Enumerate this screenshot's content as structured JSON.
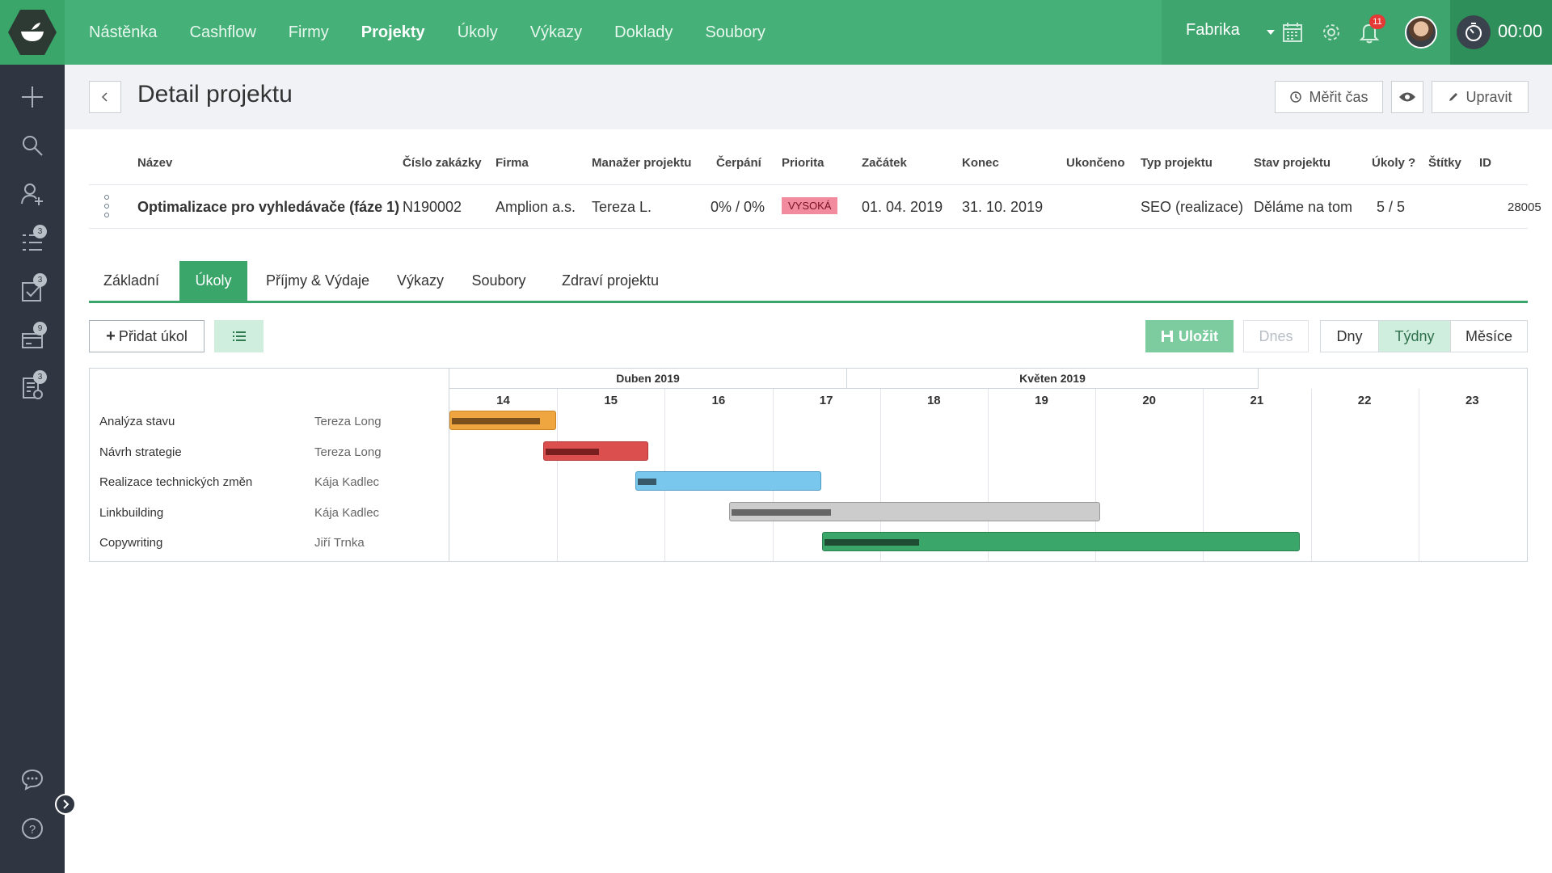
{
  "nav": {
    "items": [
      "Nástěnka",
      "Cashflow",
      "Firmy",
      "Projekty",
      "Úkoly",
      "Výkazy",
      "Doklady",
      "Soubory"
    ],
    "active_index": 3
  },
  "topbar": {
    "company": "Fabrika",
    "notifications_count": "11",
    "timer": "00:00"
  },
  "sidebar": {
    "badges": {
      "tasks": "3",
      "reports": "3",
      "invoices": "9",
      "docs": "3"
    }
  },
  "header": {
    "title": "Detail projektu",
    "measure_time_label": "Měřit čas",
    "edit_label": "Upravit"
  },
  "project_table": {
    "headers": {
      "name": "Název",
      "order_no": "Číslo zakázky",
      "company": "Firma",
      "manager": "Manažer projektu",
      "spent": "Čerpání",
      "priority": "Priorita",
      "start": "Začátek",
      "end": "Konec",
      "finished": "Ukončeno",
      "type": "Typ projektu",
      "state": "Stav projektu",
      "tasks": "Úkoly ?",
      "tags": "Štítky",
      "id": "ID"
    },
    "row": {
      "name": "Optimalizace pro vyhledávače (fáze 1)",
      "order_no": "N190002",
      "company": "Amplion a.s.",
      "manager": "Tereza L.",
      "spent": "0% / 0%",
      "priority": "VYSOKÁ",
      "start": "01. 04. 2019",
      "end": "31. 10. 2019",
      "finished": "",
      "type": "SEO (realizace)",
      "state": "Děláme na tom",
      "tasks": "5 / 5",
      "tags": "",
      "id": "28005"
    }
  },
  "tabs": [
    "Základní",
    "Úkoly",
    "Příjmy & Výdaje",
    "Výkazy",
    "Soubory",
    "Zdraví projektu"
  ],
  "active_tab": 1,
  "toolbar": {
    "add_task": "Přidat úkol",
    "save": "Uložit",
    "today": "Dnes",
    "days": "Dny",
    "weeks": "Týdny",
    "months": "Měsíce",
    "active_scale": "weeks"
  },
  "gantt": {
    "months": [
      "Duben 2019",
      "Květen 2019"
    ],
    "weeks": [
      "14",
      "15",
      "16",
      "17",
      "18",
      "19",
      "20",
      "21",
      "22",
      "23"
    ],
    "tasks": [
      {
        "name": "Analýza stavu",
        "assignee": "Tereza Long",
        "start_week": 14.0,
        "end_week": 14.99,
        "progress": 0.85,
        "color": "#f0a640",
        "border": "#c98424",
        "prog_color": "#7a4f1b"
      },
      {
        "name": "Návrh strategie",
        "assignee": "Tereza Long",
        "start_week": 14.87,
        "end_week": 15.85,
        "progress": 0.52,
        "color": "#db4f4f",
        "border": "#b53636",
        "prog_color": "#7a1f1f"
      },
      {
        "name": "Realizace technických změn",
        "assignee": "Kája Kadlec",
        "start_week": 15.73,
        "end_week": 17.45,
        "progress": 0.1,
        "color": "#79c7ec",
        "border": "#4b9ac4",
        "prog_color": "#37596a"
      },
      {
        "name": "Linkbuilding",
        "assignee": "Kája Kadlec",
        "start_week": 16.6,
        "end_week": 20.04,
        "progress": 0.27,
        "color": "#cccccc",
        "border": "#9a9a9a",
        "prog_color": "#666666"
      },
      {
        "name": "Copywriting",
        "assignee": "Jiří Trnka",
        "start_week": 17.46,
        "end_week": 21.9,
        "progress": 0.2,
        "color": "#3aa66a",
        "border": "#2a7f4f",
        "prog_color": "#1f4d33"
      }
    ]
  }
}
